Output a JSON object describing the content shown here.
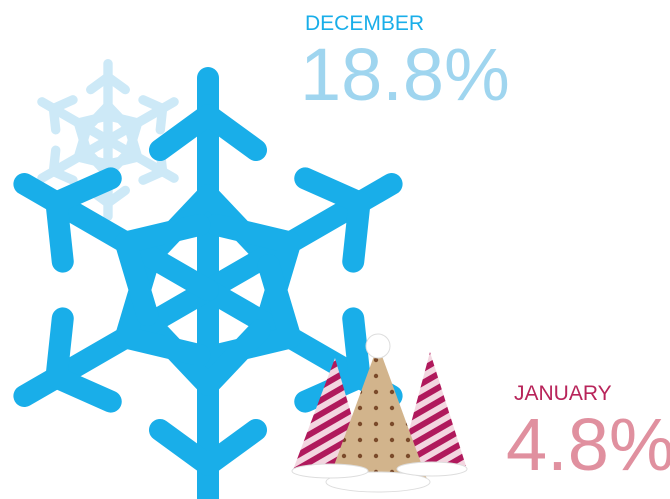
{
  "stats": [
    {
      "month": "DECEMBER",
      "value": "18.8%"
    },
    {
      "month": "JANUARY",
      "value": "4.8%"
    }
  ]
}
